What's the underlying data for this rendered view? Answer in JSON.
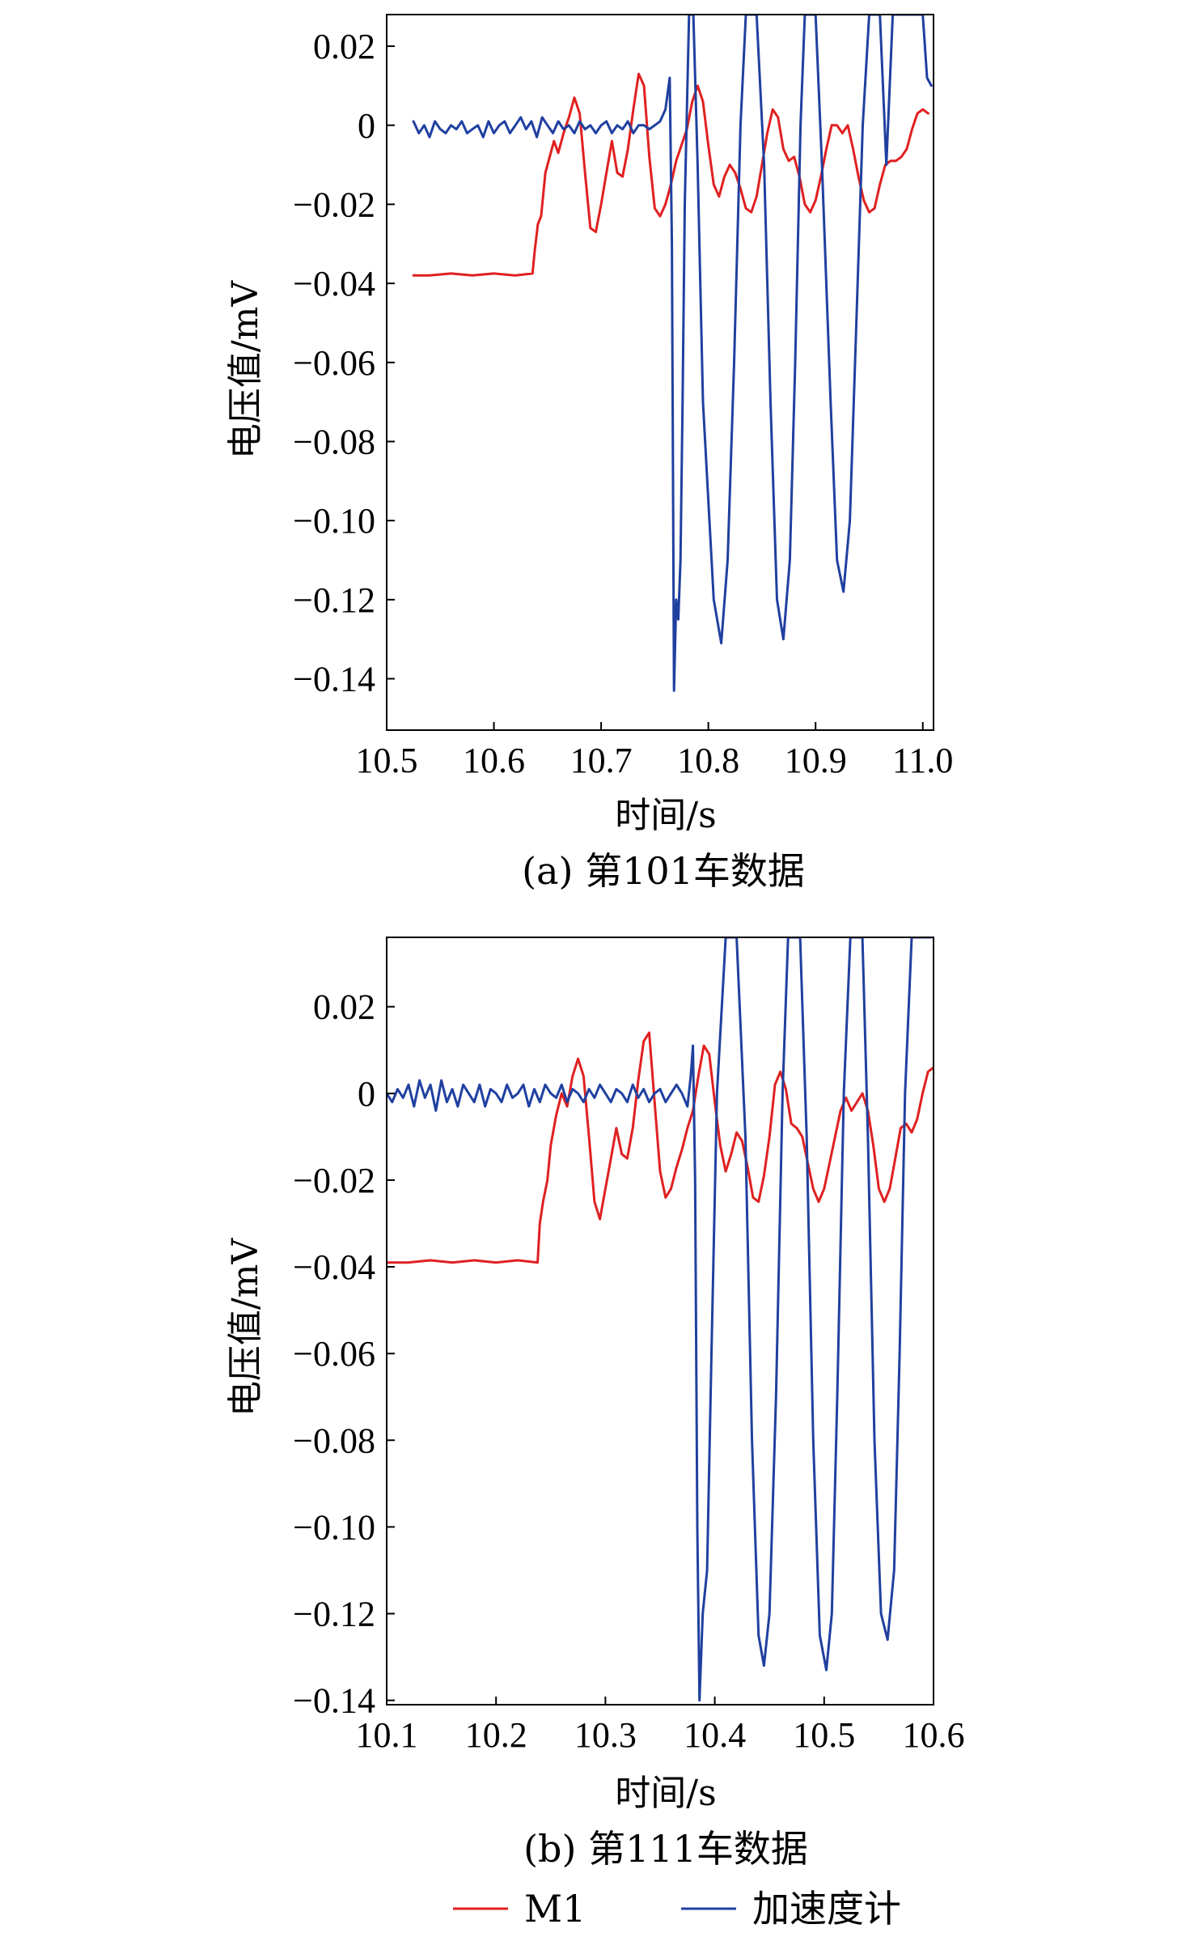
{
  "chart_data": [
    {
      "type": "line",
      "caption": "(a) 第101车数据",
      "xlabel": "时间/s",
      "ylabel": "电压值/mV",
      "xlim": [
        10.5,
        11.01
      ],
      "ylim": [
        -0.153,
        0.028
      ],
      "xticks": [
        10.5,
        10.6,
        10.7,
        10.8,
        10.9,
        11.0
      ],
      "xtick_labels": [
        "10.5",
        "10.6",
        "10.7",
        "10.8",
        "10.9",
        "11.0"
      ],
      "yticks": [
        0.02,
        0,
        -0.02,
        -0.04,
        -0.06,
        -0.08,
        -0.1,
        -0.12,
        -0.14
      ],
      "ytick_labels": [
        "0.02",
        "0",
        "−0.02",
        "−0.04",
        "−0.06",
        "−0.08",
        "−0.10",
        "−0.12",
        "−0.14"
      ],
      "grid": false,
      "series": [
        {
          "name": "M1",
          "color": "#e02020",
          "x": [
            10.525,
            10.54,
            10.56,
            10.58,
            10.6,
            10.62,
            10.636,
            10.638,
            10.641,
            10.644,
            10.648,
            10.652,
            10.656,
            10.66,
            10.665,
            10.67,
            10.675,
            10.68,
            10.685,
            10.69,
            10.695,
            10.7,
            10.705,
            10.71,
            10.715,
            10.72,
            10.725,
            10.73,
            10.735,
            10.74,
            10.745,
            10.75,
            10.755,
            10.76,
            10.765,
            10.77,
            10.775,
            10.78,
            10.785,
            10.79,
            10.795,
            10.8,
            10.805,
            10.81,
            10.815,
            10.82,
            10.825,
            10.83,
            10.835,
            10.84,
            10.845,
            10.85,
            10.855,
            10.86,
            10.865,
            10.87,
            10.875,
            10.88,
            10.885,
            10.89,
            10.895,
            10.9,
            10.905,
            10.91,
            10.915,
            10.92,
            10.925,
            10.93,
            10.935,
            10.94,
            10.945,
            10.95,
            10.955,
            10.96,
            10.965,
            10.97,
            10.975,
            10.98,
            10.985,
            10.99,
            10.995,
            11.0,
            11.005
          ],
          "y": [
            -0.038,
            -0.038,
            -0.0375,
            -0.038,
            -0.0375,
            -0.038,
            -0.0375,
            -0.032,
            -0.025,
            -0.023,
            -0.012,
            -0.008,
            -0.004,
            -0.007,
            -0.002,
            0.002,
            0.007,
            0.003,
            -0.012,
            -0.026,
            -0.027,
            -0.02,
            -0.012,
            -0.004,
            -0.012,
            -0.013,
            -0.006,
            0.004,
            0.013,
            0.01,
            -0.008,
            -0.021,
            -0.023,
            -0.02,
            -0.015,
            -0.009,
            -0.005,
            -0.001,
            0.006,
            0.01,
            0.006,
            -0.005,
            -0.015,
            -0.018,
            -0.013,
            -0.01,
            -0.012,
            -0.016,
            -0.021,
            -0.022,
            -0.018,
            -0.01,
            -0.002,
            0.004,
            0.002,
            -0.006,
            -0.009,
            -0.008,
            -0.013,
            -0.02,
            -0.022,
            -0.019,
            -0.013,
            -0.006,
            0.0,
            0.0,
            -0.002,
            0.0,
            -0.006,
            -0.013,
            -0.019,
            -0.022,
            -0.021,
            -0.015,
            -0.01,
            -0.009,
            -0.009,
            -0.008,
            -0.006,
            -0.001,
            0.003,
            0.004,
            0.003
          ]
        },
        {
          "name": "加速度计",
          "color": "#2040a0",
          "x": [
            10.525,
            10.53,
            10.535,
            10.54,
            10.545,
            10.55,
            10.555,
            10.56,
            10.565,
            10.57,
            10.575,
            10.58,
            10.585,
            10.59,
            10.595,
            10.6,
            10.605,
            10.61,
            10.615,
            10.62,
            10.625,
            10.63,
            10.635,
            10.64,
            10.645,
            10.65,
            10.655,
            10.66,
            10.665,
            10.67,
            10.675,
            10.68,
            10.685,
            10.69,
            10.695,
            10.7,
            10.705,
            10.71,
            10.715,
            10.72,
            10.725,
            10.73,
            10.735,
            10.74,
            10.745,
            10.75,
            10.755,
            10.76,
            10.764,
            10.766,
            10.768,
            10.77,
            10.772,
            10.774,
            10.776,
            10.778,
            10.782,
            10.786,
            10.79,
            10.795,
            10.805,
            10.812,
            10.818,
            10.824,
            10.83,
            10.835,
            10.845,
            10.852,
            10.858,
            10.864,
            10.87,
            10.876,
            10.881,
            10.886,
            10.89,
            10.895,
            10.9,
            10.906,
            10.914,
            10.92,
            10.926,
            10.932,
            10.938,
            10.944,
            10.95,
            10.955,
            10.96,
            10.966,
            10.972,
            10.978,
            10.984,
            10.99,
            10.996,
            11.0,
            11.004,
            11.008
          ],
          "y": [
            0.001,
            -0.002,
            0.0,
            -0.003,
            0.001,
            -0.001,
            -0.002,
            0.0,
            -0.001,
            0.001,
            -0.002,
            -0.001,
            0.0,
            -0.003,
            0.001,
            -0.002,
            0.0,
            0.001,
            -0.002,
            0.0,
            0.002,
            -0.001,
            0.001,
            -0.003,
            0.002,
            0.0,
            -0.002,
            0.001,
            -0.001,
            0.0,
            -0.002,
            0.001,
            -0.001,
            0.0,
            -0.002,
            0.0,
            0.001,
            -0.002,
            0.0,
            -0.001,
            0.001,
            -0.002,
            0.0,
            0.0,
            -0.001,
            0.0,
            0.001,
            0.004,
            0.012,
            -0.03,
            -0.143,
            -0.12,
            -0.125,
            -0.11,
            -0.07,
            -0.02,
            0.028,
            0.028,
            -0.01,
            -0.07,
            -0.12,
            -0.131,
            -0.11,
            -0.06,
            0.0,
            0.028,
            0.028,
            -0.01,
            -0.07,
            -0.12,
            -0.13,
            -0.11,
            -0.06,
            0.0,
            0.028,
            0.028,
            0.028,
            -0.01,
            -0.07,
            -0.11,
            -0.118,
            -0.1,
            -0.05,
            0.0,
            0.028,
            0.028,
            0.028,
            -0.01,
            0.028,
            0.028,
            0.028,
            0.028,
            0.028,
            0.028,
            0.012,
            0.01
          ]
        }
      ]
    },
    {
      "type": "line",
      "caption": "(b) 第111车数据",
      "xlabel": "时间/s",
      "ylabel": "电压值/mV",
      "xlim": [
        10.1,
        10.6
      ],
      "ylim": [
        -0.141,
        0.036
      ],
      "xticks": [
        10.1,
        10.2,
        10.3,
        10.4,
        10.5,
        10.6
      ],
      "xtick_labels": [
        "10.1",
        "10.2",
        "10.3",
        "10.4",
        "10.5",
        "10.6"
      ],
      "yticks": [
        0.02,
        0,
        -0.02,
        -0.04,
        -0.06,
        -0.08,
        -0.1,
        -0.12,
        -0.14
      ],
      "ytick_labels": [
        "0.02",
        "0",
        "−0.02",
        "−0.04",
        "−0.06",
        "−0.08",
        "−0.10",
        "−0.12",
        "−0.14"
      ],
      "grid": false,
      "series": [
        {
          "name": "M1",
          "color": "#e02020",
          "x": [
            10.1,
            10.12,
            10.14,
            10.16,
            10.18,
            10.2,
            10.22,
            10.238,
            10.24,
            10.243,
            10.247,
            10.25,
            10.255,
            10.26,
            10.265,
            10.27,
            10.275,
            10.28,
            10.285,
            10.29,
            10.295,
            10.3,
            10.305,
            10.31,
            10.315,
            10.32,
            10.325,
            10.33,
            10.335,
            10.34,
            10.345,
            10.35,
            10.355,
            10.36,
            10.365,
            10.37,
            10.375,
            10.38,
            10.385,
            10.39,
            10.395,
            10.4,
            10.405,
            10.41,
            10.415,
            10.42,
            10.425,
            10.43,
            10.435,
            10.44,
            10.445,
            10.45,
            10.455,
            10.46,
            10.465,
            10.47,
            10.475,
            10.48,
            10.485,
            10.49,
            10.495,
            10.5,
            10.505,
            10.51,
            10.515,
            10.52,
            10.525,
            10.53,
            10.535,
            10.54,
            10.545,
            10.55,
            10.555,
            10.56,
            10.565,
            10.57,
            10.575,
            10.58,
            10.585,
            10.59,
            10.595,
            10.6
          ],
          "y": [
            -0.039,
            -0.039,
            -0.0385,
            -0.039,
            -0.0385,
            -0.039,
            -0.0385,
            -0.039,
            -0.03,
            -0.025,
            -0.02,
            -0.012,
            -0.005,
            0.0,
            -0.003,
            0.004,
            0.008,
            0.004,
            -0.01,
            -0.025,
            -0.029,
            -0.022,
            -0.015,
            -0.008,
            -0.014,
            -0.015,
            -0.008,
            0.003,
            0.012,
            0.014,
            -0.002,
            -0.018,
            -0.024,
            -0.022,
            -0.017,
            -0.013,
            -0.008,
            -0.004,
            0.004,
            0.011,
            0.009,
            -0.002,
            -0.012,
            -0.018,
            -0.014,
            -0.009,
            -0.011,
            -0.017,
            -0.024,
            -0.025,
            -0.019,
            -0.01,
            0.002,
            0.005,
            0.001,
            -0.007,
            -0.008,
            -0.01,
            -0.016,
            -0.022,
            -0.025,
            -0.022,
            -0.016,
            -0.01,
            -0.004,
            -0.001,
            -0.004,
            -0.002,
            0.0,
            -0.004,
            -0.012,
            -0.022,
            -0.025,
            -0.022,
            -0.015,
            -0.008,
            -0.007,
            -0.009,
            -0.006,
            0.0,
            0.005,
            0.006
          ]
        },
        {
          "name": "加速度计",
          "color": "#2040a0",
          "x": [
            10.1,
            10.105,
            10.11,
            10.115,
            10.12,
            10.125,
            10.13,
            10.135,
            10.14,
            10.145,
            10.15,
            10.155,
            10.16,
            10.165,
            10.17,
            10.175,
            10.18,
            10.185,
            10.19,
            10.195,
            10.2,
            10.205,
            10.21,
            10.215,
            10.22,
            10.225,
            10.23,
            10.235,
            10.24,
            10.245,
            10.25,
            10.255,
            10.26,
            10.265,
            10.27,
            10.275,
            10.28,
            10.285,
            10.29,
            10.295,
            10.3,
            10.305,
            10.31,
            10.315,
            10.32,
            10.325,
            10.33,
            10.335,
            10.34,
            10.345,
            10.35,
            10.355,
            10.36,
            10.365,
            10.37,
            10.375,
            10.378,
            10.38,
            10.382,
            10.384,
            10.386,
            10.389,
            10.393,
            10.397,
            10.402,
            10.41,
            10.42,
            10.428,
            10.434,
            10.44,
            10.445,
            10.45,
            10.456,
            10.462,
            10.467,
            10.472,
            10.478,
            10.484,
            10.49,
            10.496,
            10.502,
            10.507,
            10.512,
            10.518,
            10.524,
            10.53,
            10.535,
            10.54,
            10.546,
            10.552,
            10.558,
            10.564,
            10.569,
            10.574,
            10.58,
            10.586,
            10.592,
            10.598
          ],
          "y": [
            0.0,
            -0.002,
            0.001,
            -0.001,
            0.002,
            -0.003,
            0.003,
            -0.001,
            0.002,
            -0.004,
            0.003,
            -0.002,
            0.001,
            -0.003,
            0.002,
            0.0,
            -0.002,
            0.002,
            -0.003,
            0.001,
            0.0,
            -0.002,
            0.002,
            -0.001,
            0.0,
            0.002,
            -0.003,
            0.001,
            -0.002,
            0.002,
            0.0,
            -0.001,
            0.002,
            -0.002,
            0.001,
            0.0,
            -0.002,
            0.001,
            -0.001,
            0.002,
            0.0,
            -0.002,
            0.001,
            0.0,
            -0.002,
            0.002,
            -0.001,
            0.001,
            -0.002,
            0.0,
            0.001,
            -0.002,
            0.0,
            0.002,
            0.0,
            -0.003,
            0.004,
            0.011,
            -0.02,
            -0.1,
            -0.14,
            -0.12,
            -0.11,
            -0.06,
            0.0,
            0.036,
            0.036,
            -0.01,
            -0.08,
            -0.125,
            -0.132,
            -0.12,
            -0.07,
            0.0,
            0.036,
            0.036,
            0.036,
            -0.01,
            -0.08,
            -0.125,
            -0.133,
            -0.12,
            -0.07,
            0.0,
            0.036,
            0.036,
            0.036,
            -0.01,
            -0.08,
            -0.12,
            -0.126,
            -0.11,
            -0.06,
            0.0,
            0.036,
            0.036,
            0.036,
            0.036
          ]
        }
      ]
    }
  ],
  "legend": {
    "placement": "bottom",
    "items": [
      {
        "label": "M1",
        "color": "#e02020"
      },
      {
        "label": "加速度计",
        "color": "#2040a0"
      }
    ]
  }
}
